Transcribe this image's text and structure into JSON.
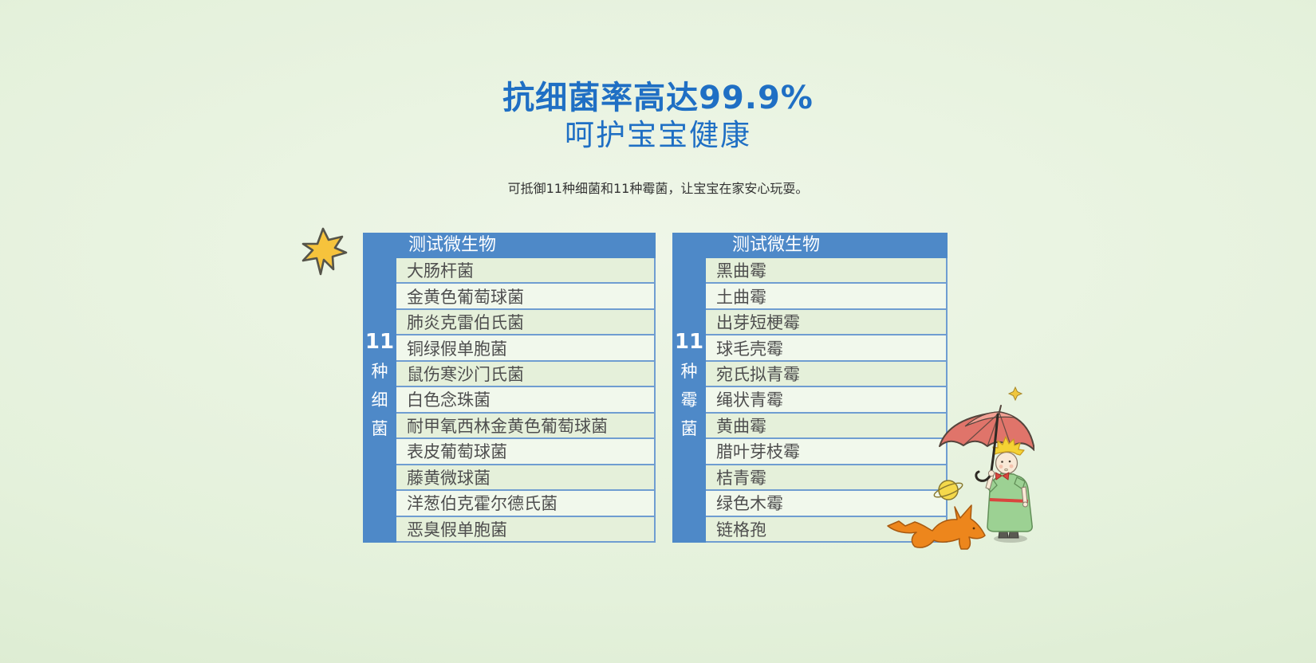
{
  "page": {
    "title": "抗细菌率高达99.9%",
    "subtitle": "呵护宝宝健康",
    "description": "可抵御11种细菌和11种霉菌，让宝宝在家安心玩耍。"
  },
  "colors": {
    "title_blue": "#1f6fc4",
    "table_header_blue": "#4e89c8",
    "row_green": "#e5f0da",
    "row_pale": "#f1f8ec",
    "row_border_blue": "#6f9dd1",
    "background_green": "#e4f1db",
    "star_yellow": "#f6c33c",
    "umbrella_red": "#e0746a",
    "fox_orange": "#ed861c",
    "boy_green": "#9cd193"
  },
  "bacteria_table": {
    "header": "测试微生物",
    "side_label": [
      "11",
      "种",
      "细",
      "菌"
    ],
    "rows": [
      "大肠杆菌",
      "金黄色葡萄球菌",
      "肺炎克雷伯氏菌",
      "铜绿假单胞菌",
      "鼠伤寒沙门氏菌",
      "白色念珠菌",
      "耐甲氧西林金黄色葡萄球菌",
      "表皮葡萄球菌",
      "藤黄微球菌",
      "洋葱伯克霍尔德氏菌",
      "恶臭假单胞菌"
    ]
  },
  "mold_table": {
    "header": "测试微生物",
    "side_label": [
      "11",
      "种",
      "霉",
      "菌"
    ],
    "rows": [
      "黑曲霉",
      "土曲霉",
      "出芽短梗霉",
      "球毛壳霉",
      "宛氏拟青霉",
      "绳状青霉",
      "黄曲霉",
      "腊叶芽枝霉",
      "桔青霉",
      "绿色木霉",
      "链格孢"
    ]
  },
  "decorations": {
    "star_icon": "hand-drawn-star",
    "illustration": "little-prince-with-umbrella-fox-and-planet"
  }
}
